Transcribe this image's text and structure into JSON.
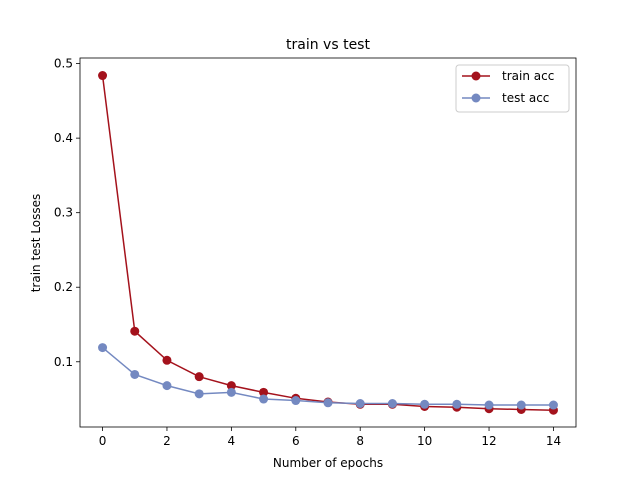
{
  "chart_data": {
    "type": "line",
    "title": "train vs test",
    "xlabel": "Number of epochs",
    "ylabel": "train test Losses",
    "xlim": [
      -0.7,
      14.7
    ],
    "ylim": [
      0.0125,
      0.5075
    ],
    "xticks": [
      0,
      2,
      4,
      6,
      8,
      10,
      12,
      14
    ],
    "yticks": [
      0.1,
      0.2,
      0.3,
      0.4,
      0.5
    ],
    "xtick_labels": [
      "0",
      "2",
      "4",
      "6",
      "8",
      "10",
      "12",
      "14"
    ],
    "ytick_labels": [
      "0.1",
      "0.2",
      "0.3",
      "0.4",
      "0.5"
    ],
    "grid": false,
    "legend_position": "top-right",
    "x": [
      0,
      1,
      2,
      3,
      4,
      5,
      6,
      7,
      8,
      9,
      10,
      11,
      12,
      13,
      14
    ],
    "series": [
      {
        "name": "train acc",
        "color": "#a4121c",
        "values": [
          0.484,
          0.141,
          0.102,
          0.08,
          0.068,
          0.059,
          0.051,
          0.046,
          0.043,
          0.043,
          0.04,
          0.039,
          0.037,
          0.036,
          0.035
        ]
      },
      {
        "name": "test acc",
        "color": "#7489c1",
        "values": [
          0.119,
          0.083,
          0.068,
          0.057,
          0.059,
          0.05,
          0.048,
          0.045,
          0.044,
          0.044,
          0.043,
          0.043,
          0.042,
          0.042,
          0.042
        ]
      }
    ]
  }
}
